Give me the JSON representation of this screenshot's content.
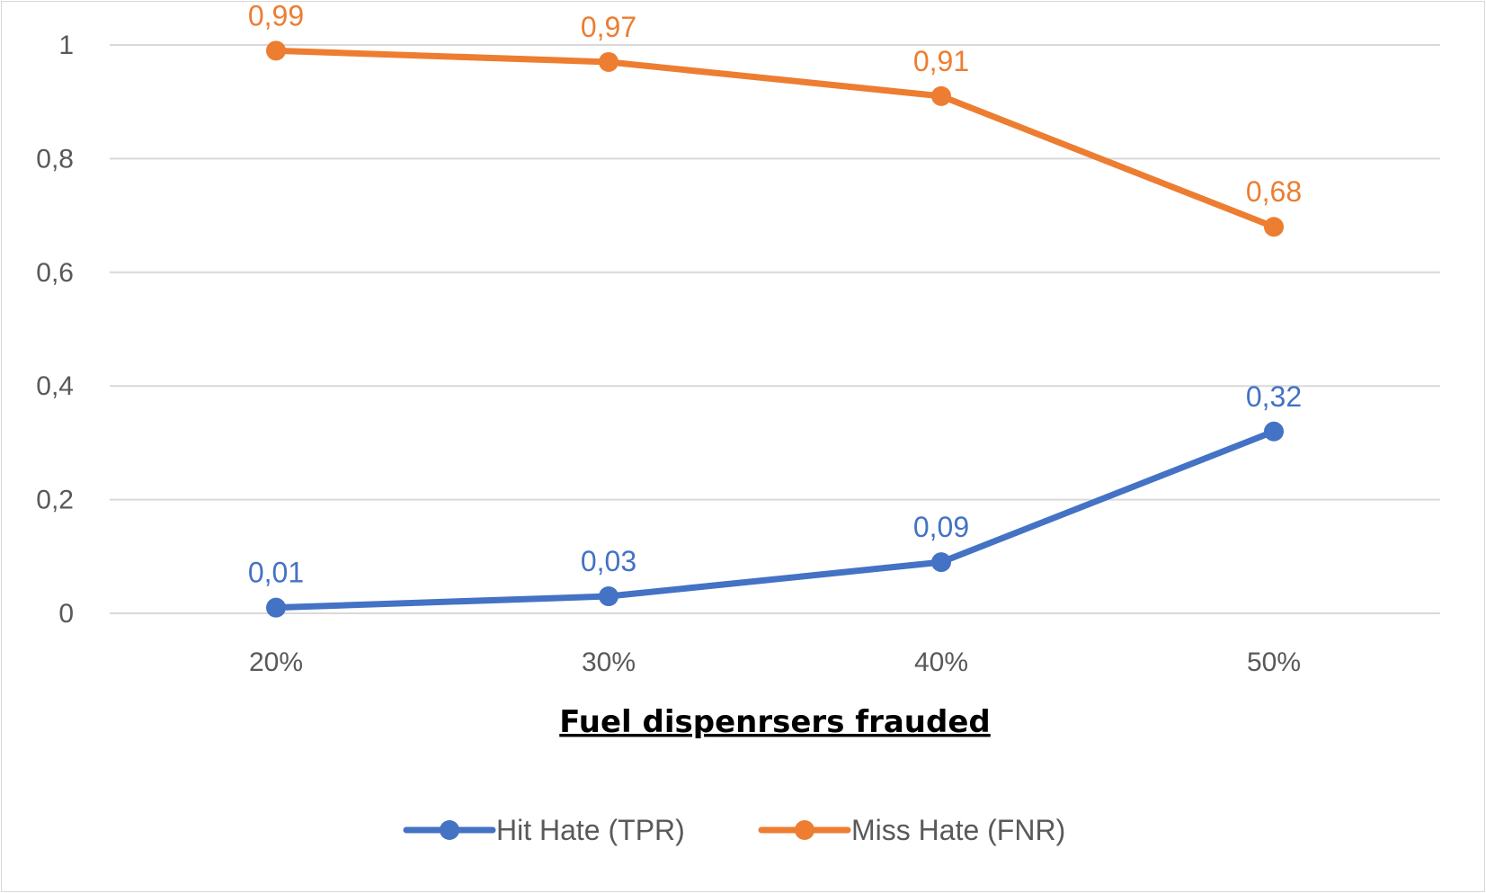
{
  "chart_data": {
    "type": "line",
    "title": "",
    "xlabel": "Fuel dispenrsers frauded",
    "ylabel": "",
    "categories": [
      "20%",
      "30%",
      "40%",
      "50%"
    ],
    "ylim": [
      0,
      1
    ],
    "yticks": [
      "0",
      "0,2",
      "0,4",
      "0,6",
      "0,8",
      "1"
    ],
    "yticks_values": [
      0,
      0.2,
      0.4,
      0.6,
      0.8,
      1
    ],
    "grid": true,
    "legend_position": "bottom",
    "series": [
      {
        "name": "Hit Hate (TPR)",
        "color": "#4472c4",
        "values": [
          0.01,
          0.03,
          0.09,
          0.32
        ],
        "labels": [
          "0,01",
          "0,03",
          "0,09",
          "0,32"
        ]
      },
      {
        "name": "Miss Hate (FNR)",
        "color": "#ed7d31",
        "values": [
          0.99,
          0.97,
          0.91,
          0.68
        ],
        "labels": [
          "0,99",
          "0,97",
          "0,91",
          "0,68"
        ]
      }
    ]
  }
}
